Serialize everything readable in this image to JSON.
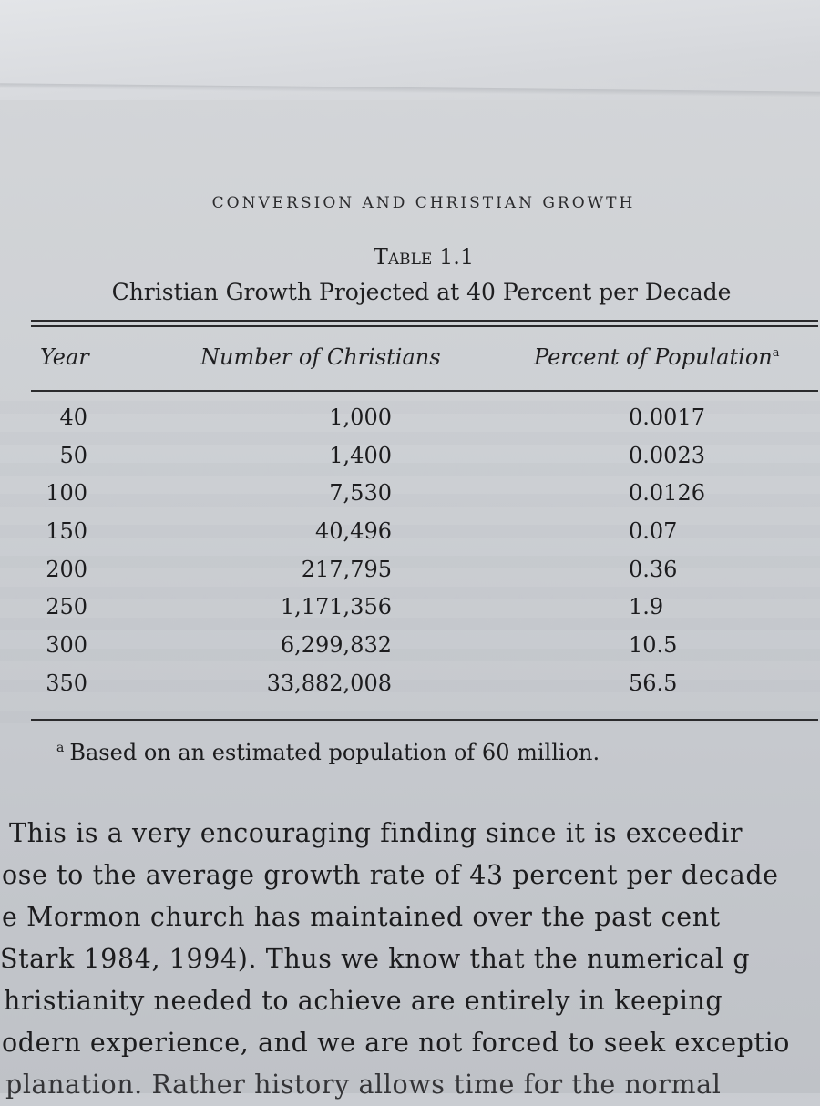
{
  "running_head": "CONVERSION AND CHRISTIAN GROWTH",
  "table": {
    "label": "Table",
    "number": "1.1",
    "caption": "Christian Growth Projected at 40 Percent per Decade",
    "columns": {
      "year": "Year",
      "number": "Number of Christians",
      "percent": "Percent of Population",
      "percent_note_mark": "a"
    },
    "rows": [
      {
        "year": "40",
        "number": "1,000",
        "percent": "0.0017"
      },
      {
        "year": "50",
        "number": "1,400",
        "percent": "0.0023"
      },
      {
        "year": "100",
        "number": "7,530",
        "percent": "0.0126"
      },
      {
        "year": "150",
        "number": "40,496",
        "percent": "0.07"
      },
      {
        "year": "200",
        "number": "217,795",
        "percent": "0.36"
      },
      {
        "year": "250",
        "number": "1,171,356",
        "percent": "1.9"
      },
      {
        "year": "300",
        "number": "6,299,832",
        "percent": "10.5"
      },
      {
        "year": "350",
        "number": "33,882,008",
        "percent": "56.5"
      }
    ],
    "footnote": {
      "mark": "a",
      "text": "Based on an estimated population of 60 million."
    }
  },
  "body_lines": [
    "This is a very encouraging finding since it is exceedir",
    "ose to the average growth rate of 43 percent per decade",
    "e Mormon church has maintained over the past cent",
    "Stark 1984, 1994). Thus we know that the numerical g",
    "hristianity needed to achieve are entirely in keeping",
    "odern experience, and we are not forced to seek exceptio",
    "  planation. Rather history allows time for the normal"
  ]
}
